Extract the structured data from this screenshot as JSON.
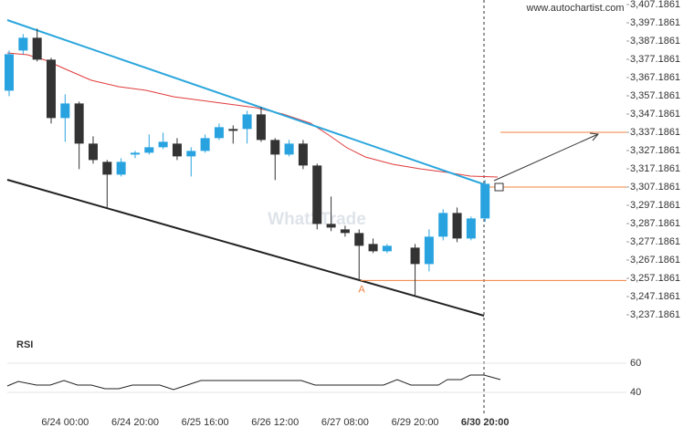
{
  "chart_data": {
    "type": "candlestick",
    "source": "www.autochartist.com",
    "watermark": "What2Trade",
    "point_label": "A",
    "categories": [
      null,
      null,
      null,
      null,
      "6/24 00:00",
      null,
      null,
      null,
      null,
      "6/24 20:00",
      null,
      null,
      null,
      null,
      "6/25 16:00",
      null,
      null,
      null,
      null,
      "6/26 12:00",
      null,
      null,
      null,
      null,
      "6/27 08:00",
      null,
      null,
      null,
      null,
      "6/29 20:00",
      null,
      null,
      null,
      null,
      "6/30 20:00"
    ],
    "open": [
      3360,
      3382,
      3389,
      3377,
      3345,
      3353,
      3331,
      3321,
      3314,
      3325,
      3326,
      3329,
      3331,
      3324,
      3327,
      3334,
      3339,
      3339,
      3347,
      3333,
      3325,
      3331,
      3319,
      3287,
      3284,
      3282,
      3276,
      3272,
      null,
      3274,
      3265,
      3280,
      3293,
      3279,
      3290
    ],
    "high": [
      3382,
      3391,
      3394,
      3378,
      3358,
      3354,
      3335,
      3322,
      3323,
      3327,
      3336,
      3337,
      3334,
      3329,
      3336,
      3342,
      3341,
      3349,
      3351,
      3334,
      3333,
      3333,
      3320,
      3302,
      3286,
      3284,
      3279,
      3276,
      null,
      3276,
      3284,
      3295,
      3296,
      3291,
      3311
    ],
    "low": [
      3357,
      3380,
      3376,
      3342,
      3332,
      3317,
      3320,
      3296,
      3313,
      3323,
      3325,
      3328,
      3322,
      3313,
      3326,
      3333,
      3331,
      3331,
      3332,
      3311,
      3324,
      3317,
      3284,
      3283,
      3280,
      3256,
      3271,
      3271,
      null,
      3248,
      3261,
      3278,
      3277,
      3278,
      3288
    ],
    "close": [
      3380,
      3389,
      3377,
      3345,
      3353,
      3331,
      3322,
      3314,
      3321,
      3326,
      3329,
      3332,
      3324,
      3327,
      3334,
      3340,
      3338,
      3347,
      3333,
      3325,
      3331,
      3319,
      3287,
      3285,
      3282,
      3275,
      3272,
      3275,
      null,
      3265,
      3280,
      3293,
      3279,
      3290,
      3309
    ],
    "up_color": "#29a3e0",
    "down_color": "#333333",
    "ylim": [
      3237.1861,
      3407.1861
    ],
    "yticks": [
      {
        "value": 3407.1861,
        "label": "3,407.1861"
      },
      {
        "value": 3397.1861,
        "label": "3,397.1861"
      },
      {
        "value": 3387.1861,
        "label": "3,387.1861"
      },
      {
        "value": 3377.1861,
        "label": "3,377.1861"
      },
      {
        "value": 3367.1861,
        "label": "3,367.1861"
      },
      {
        "value": 3357.1861,
        "label": "3,357.1861"
      },
      {
        "value": 3347.1861,
        "label": "3,347.1861"
      },
      {
        "value": 3337.1861,
        "label": "3,337.1861"
      },
      {
        "value": 3327.1861,
        "label": "3,327.1861"
      },
      {
        "value": 3317.1861,
        "label": "3,317.1861"
      },
      {
        "value": 3307.1861,
        "label": "3,307.1861"
      },
      {
        "value": 3297.1861,
        "label": "3,297.1861"
      },
      {
        "value": 3287.1861,
        "label": "3,287.1861"
      },
      {
        "value": 3277.1861,
        "label": "3,277.1861"
      },
      {
        "value": 3267.1861,
        "label": "3,267.1861"
      },
      {
        "value": 3257.1861,
        "label": "3,257.1861"
      },
      {
        "value": 3247.1861,
        "label": "3,247.1861"
      },
      {
        "value": 3237.1861,
        "label": "3,237.1861"
      }
    ],
    "levels": [
      3307.1861,
      3337.1861,
      3256
    ],
    "level_color": "#f0803c",
    "rsi": {
      "label": "RSI",
      "ylim": [
        40,
        60
      ],
      "yticks": [
        40,
        60
      ]
    }
  }
}
